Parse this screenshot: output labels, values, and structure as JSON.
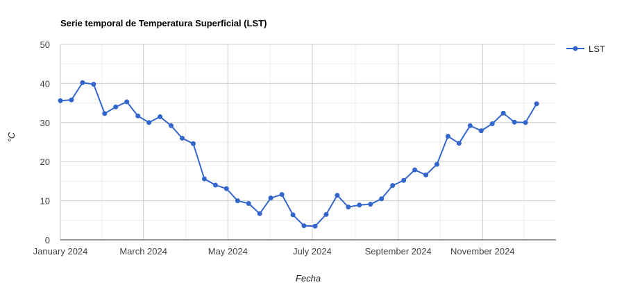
{
  "chart_data": {
    "type": "line",
    "title": "Serie temporal de Temperatura Superficial (LST)",
    "xlabel": "Fecha",
    "ylabel": "°C",
    "ylim": [
      0,
      50
    ],
    "yticks": [
      0,
      10,
      20,
      30,
      40,
      50
    ],
    "xlim": [
      "2024-01-01",
      "2024-12-24"
    ],
    "xticks": [
      {
        "date": "2024-01-01",
        "label": "January 2024"
      },
      {
        "date": "2024-03-01",
        "label": "March 2024"
      },
      {
        "date": "2024-05-01",
        "label": "May 2024"
      },
      {
        "date": "2024-07-01",
        "label": "July 2024"
      },
      {
        "date": "2024-09-01",
        "label": "September 2024"
      },
      {
        "date": "2024-11-01",
        "label": "November 2024"
      }
    ],
    "grid": true,
    "legend_position": "right",
    "series": [
      {
        "name": "LST",
        "color": "#3366cc",
        "x": [
          "2024-01-01",
          "2024-01-09",
          "2024-01-17",
          "2024-01-25",
          "2024-02-02",
          "2024-02-10",
          "2024-02-18",
          "2024-02-26",
          "2024-03-05",
          "2024-03-13",
          "2024-03-21",
          "2024-03-29",
          "2024-04-06",
          "2024-04-14",
          "2024-04-22",
          "2024-04-30",
          "2024-05-08",
          "2024-05-16",
          "2024-05-24",
          "2024-06-01",
          "2024-06-09",
          "2024-06-17",
          "2024-06-25",
          "2024-07-03",
          "2024-07-11",
          "2024-07-19",
          "2024-07-27",
          "2024-08-04",
          "2024-08-12",
          "2024-08-20",
          "2024-08-28",
          "2024-09-05",
          "2024-09-13",
          "2024-09-21",
          "2024-09-29",
          "2024-10-07",
          "2024-10-15",
          "2024-10-23",
          "2024-10-31",
          "2024-11-08",
          "2024-11-16",
          "2024-11-24",
          "2024-12-02",
          "2024-12-10",
          "2024-12-18"
        ],
        "values": [
          35.6,
          35.8,
          40.2,
          39.8,
          32.3,
          34.0,
          35.3,
          31.7,
          30.0,
          31.5,
          29.2,
          26.0,
          24.6,
          15.6,
          14.0,
          13.1,
          10.0,
          9.3,
          6.7,
          10.7,
          11.6,
          6.4,
          3.6,
          3.5,
          6.5,
          11.4,
          8.4,
          8.9,
          9.1,
          10.5,
          13.9,
          15.2,
          17.9,
          16.6,
          19.3,
          26.5,
          24.7,
          29.2,
          27.9,
          29.7,
          32.4,
          30.1,
          30.0,
          34.8,
          null
        ]
      }
    ]
  }
}
